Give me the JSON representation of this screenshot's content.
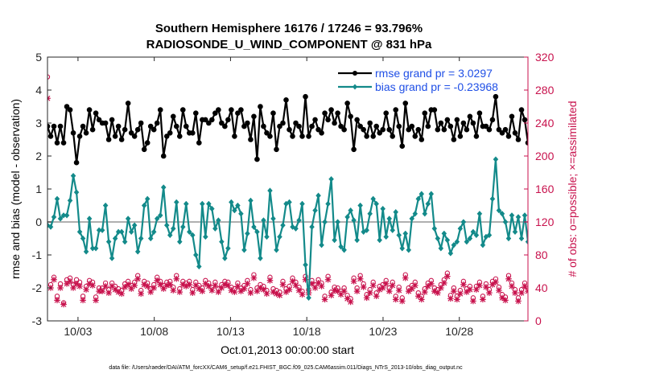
{
  "chart_data": {
    "type": "line",
    "title_line1": "Southern Hemisphere 16176 / 17246 = 93.796%",
    "title_line2": "RADIOSONDE_U_WIND_COMPONENT @ 831 hPa",
    "ylabel_left": "rmse and bias (model - observation)",
    "ylabel_right": "# of obs: o=possible; ×=assimilated",
    "xlabel": "Oct.01,2013 00:00:00 start",
    "footer": "data file: /Users/raeder/DAI/ATM_forcXX/CAM6_setup/f.e21.FHIST_BGC.f09_025.CAM6assim.011/Diags_NTrS_2013-10/obs_diag_output.nc",
    "xlim": [
      1,
      32.5
    ],
    "ylim_left": [
      -3,
      5
    ],
    "ylim_right": [
      0,
      320
    ],
    "x_ticks": [
      3,
      8,
      13,
      18,
      23,
      28
    ],
    "x_ticklabels": [
      "10/03",
      "10/08",
      "10/13",
      "10/18",
      "10/23",
      "10/28"
    ],
    "y_left_ticks": [
      -3,
      -2,
      -1,
      0,
      1,
      2,
      3,
      4,
      5
    ],
    "y_right_ticks": [
      0,
      40,
      80,
      120,
      160,
      200,
      240,
      280,
      320
    ],
    "colors": {
      "rmse": "#000000",
      "bias": "#138a8a",
      "counts": "#c8124d",
      "zero_line": "#b0b0b0",
      "legend_text": "#1f4fe6"
    },
    "series": [
      {
        "name": "rmse grand pr = 3.0297",
        "axis": "left",
        "values": [
          2.9,
          2.6,
          2.9,
          2.4,
          2.9,
          2.4,
          3.5,
          3.4,
          2.7,
          1.8,
          2.6,
          2.9,
          2.7,
          3.4,
          2.8,
          3.3,
          3.1,
          3.0,
          3.0,
          2.5,
          3.1,
          2.6,
          2.9,
          2.5,
          2.8,
          3.6,
          2.7,
          2.6,
          2.8,
          3.0,
          2.2,
          2.4,
          2.9,
          2.8,
          3.0,
          3.4,
          2.0,
          2.6,
          2.7,
          3.2,
          2.9,
          2.6,
          3.4,
          2.9,
          2.7,
          2.7,
          3.3,
          2.4,
          3.1,
          3.1,
          3.0,
          3.1,
          3.3,
          3.4,
          3.0,
          2.9,
          3.1,
          3.4,
          2.6,
          3.3,
          3.4,
          2.9,
          3.0,
          2.5,
          3.2,
          1.9,
          3.5,
          2.9,
          2.7,
          2.6,
          3.3,
          2.2,
          2.9,
          3.0,
          3.7,
          2.8,
          2.6,
          3.0,
          2.9,
          2.6,
          3.8,
          2.6,
          2.9,
          3.1,
          2.8,
          2.7,
          3.3,
          3.1,
          3.4,
          3.0,
          3.3,
          2.9,
          2.8,
          3.6,
          3.2,
          2.2,
          3.1,
          2.9,
          2.8,
          2.6,
          3.0,
          2.6,
          2.9,
          2.7,
          2.8,
          3.3,
          2.8,
          2.6,
          3.4,
          2.9,
          2.3,
          3.6,
          2.8,
          2.9,
          2.6,
          2.8,
          2.5,
          3.3,
          2.9,
          3.4,
          3.4,
          2.8,
          3.0,
          2.8,
          3.1,
          2.9,
          2.5,
          3.1,
          2.6,
          3.0,
          2.8,
          3.2,
          3.0,
          2.6,
          3.3,
          2.9,
          2.9,
          2.8,
          3.1,
          3.8,
          2.8,
          2.7,
          2.8,
          2.6,
          3.2,
          2.7,
          2.5,
          3.4,
          3.1,
          2.4
        ],
        "marker": "circle"
      },
      {
        "name": "bias grand pr = -0.23968",
        "axis": "left",
        "values": [
          -0.1,
          -0.15,
          0.15,
          0.7,
          0.1,
          0.2,
          0.2,
          0.65,
          1.4,
          0.9,
          -0.3,
          -0.5,
          -0.9,
          0.1,
          -0.8,
          -0.8,
          -0.25,
          -0.25,
          0.5,
          -0.6,
          -1.1,
          -0.5,
          -0.3,
          -0.3,
          -0.6,
          0.1,
          -0.3,
          -0.1,
          -0.9,
          -0.5,
          0.5,
          0.7,
          -0.5,
          -0.3,
          0.1,
          0.2,
          1.05,
          -0.1,
          -0.4,
          -0.2,
          0.6,
          -0.6,
          -0.15,
          0.55,
          -0.3,
          -0.4,
          -1.0,
          -1.35,
          0.55,
          -0.45,
          0.55,
          0.4,
          -0.2,
          0.05,
          -0.6,
          -1.1,
          -0.8,
          0.6,
          0.35,
          0.5,
          0.25,
          -0.85,
          -0.35,
          0.65,
          -0.15,
          -0.3,
          -1.1,
          0.05,
          -0.45,
          0.95,
          0.1,
          -0.85,
          -0.45,
          -0.1,
          0.55,
          0.6,
          -0.15,
          -0.2,
          0.05,
          0.55,
          -1.3,
          -2.3,
          -0.15,
          0.35,
          0.8,
          -0.7,
          0.0,
          0.55,
          1.3,
          -0.55,
          0.0,
          -0.75,
          -0.85,
          0.15,
          0.35,
          0.05,
          -0.55,
          0.5,
          -0.3,
          -0.25,
          0.25,
          0.7,
          0.55,
          -0.55,
          0.4,
          -0.45,
          0.1,
          -0.25,
          0.3,
          -0.4,
          -0.8,
          -0.35,
          -0.85,
          0.1,
          0.25,
          0.7,
          0.85,
          0.25,
          0.55,
          0.85,
          -0.2,
          -0.5,
          -0.8,
          -0.35,
          -0.55,
          -0.95,
          -0.7,
          -0.6,
          -0.2,
          0.0,
          -0.6,
          -0.5,
          -0.3,
          -0.4,
          0.25,
          -0.7,
          -0.45,
          -0.4,
          0.7,
          1.9,
          0.35,
          0.25,
          0.0,
          -0.5,
          0.2,
          -0.3,
          0.15,
          -0.5,
          0.2,
          -0.6
        ],
        "marker": "diamond"
      },
      {
        "name": "obs possible",
        "axis": "right",
        "marker": "o",
        "values": [
          296,
          44,
          53,
          30,
          45,
          22,
          50,
          52,
          44,
          50,
          47,
          30,
          42,
          49,
          47,
          29,
          40,
          40,
          46,
          38,
          46,
          42,
          39,
          37,
          45,
          48,
          43,
          47,
          55,
          37,
          48,
          46,
          39,
          44,
          53,
          48,
          43,
          47,
          48,
          41,
          55,
          39,
          48,
          46,
          48,
          38,
          47,
          43,
          40,
          49,
          46,
          41,
          47,
          39,
          44,
          48,
          47,
          41,
          39,
          46,
          40,
          43,
          49,
          38,
          56,
          40,
          44,
          42,
          37,
          53,
          39,
          37,
          35,
          48,
          39,
          42,
          52,
          47,
          41,
          36,
          54,
          38,
          49,
          44,
          50,
          46,
          30,
          54,
          35,
          41,
          40,
          36,
          40,
          31,
          27,
          52,
          40,
          55,
          45,
          32,
          38,
          47,
          34,
          42,
          44,
          49,
          40,
          47,
          30,
          41,
          28,
          56,
          40,
          43,
          47,
          34,
          30,
          39,
          46,
          49,
          40,
          38,
          44,
          50,
          58,
          31,
          40,
          30,
          37,
          48,
          39,
          42,
          28,
          42,
          47,
          30,
          45,
          38,
          48,
          51,
          41,
          32,
          29,
          55,
          46,
          38,
          28,
          38,
          46,
          40,
          40
        ]
      },
      {
        "name": "obs assimilated",
        "axis": "right",
        "marker": "x",
        "values": [
          270,
          40,
          50,
          25,
          40,
          20,
          45,
          48,
          40,
          45,
          42,
          25,
          38,
          45,
          43,
          25,
          36,
          36,
          42,
          34,
          42,
          38,
          35,
          33,
          41,
          44,
          39,
          43,
          51,
          33,
          44,
          42,
          35,
          40,
          49,
          44,
          39,
          43,
          44,
          37,
          51,
          35,
          44,
          42,
          44,
          34,
          43,
          39,
          36,
          45,
          42,
          37,
          43,
          35,
          40,
          44,
          43,
          37,
          35,
          42,
          36,
          39,
          45,
          34,
          52,
          36,
          40,
          38,
          33,
          49,
          35,
          33,
          31,
          44,
          35,
          38,
          48,
          43,
          37,
          32,
          50,
          34,
          45,
          40,
          46,
          42,
          26,
          50,
          31,
          37,
          36,
          32,
          36,
          27,
          23,
          48,
          36,
          51,
          41,
          28,
          34,
          43,
          30,
          38,
          40,
          45,
          36,
          43,
          26,
          37,
          24,
          52,
          36,
          39,
          43,
          30,
          26,
          35,
          42,
          45,
          36,
          34,
          40,
          46,
          54,
          27,
          36,
          26,
          33,
          44,
          35,
          38,
          24,
          38,
          43,
          26,
          41,
          34,
          44,
          47,
          37,
          28,
          25,
          51,
          42,
          34,
          24,
          34,
          42,
          36,
          0
        ]
      }
    ]
  }
}
